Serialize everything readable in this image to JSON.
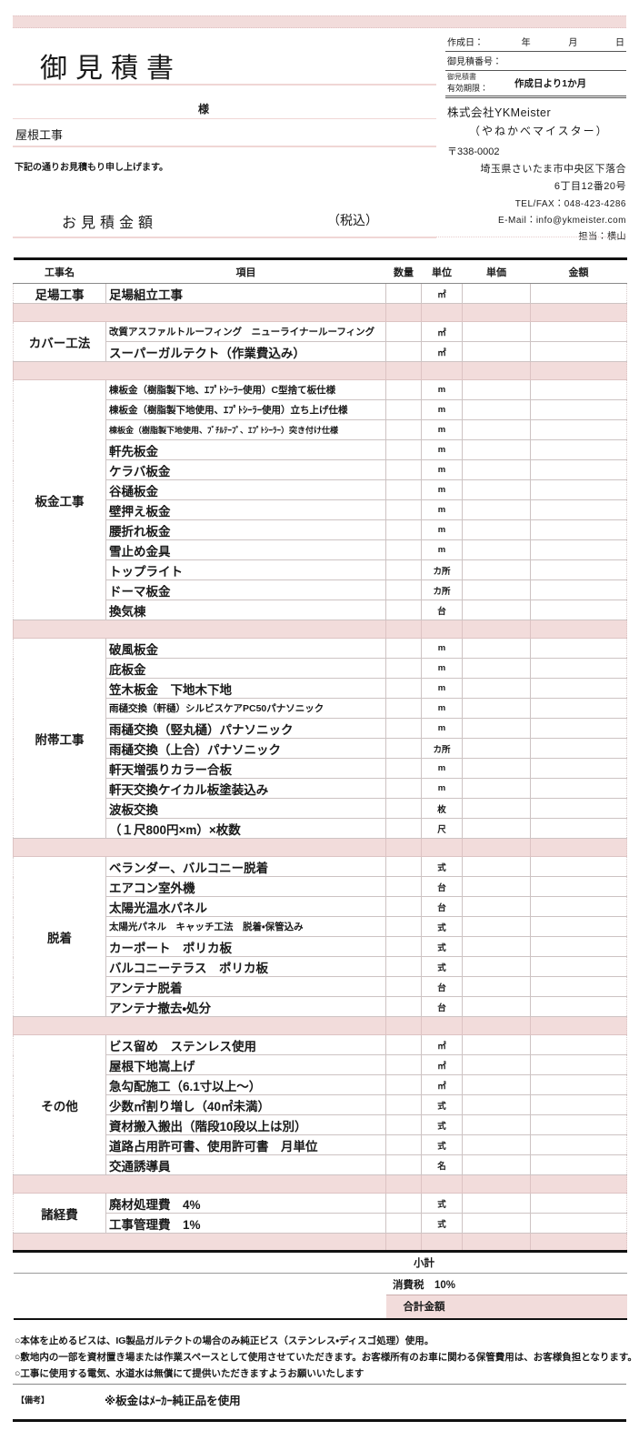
{
  "colors": {
    "accent_pink": "#f2dcdb",
    "line_dark": "#111111"
  },
  "page": {
    "title": "御見積書",
    "customer_suffix": "様",
    "subject": "屋根工事",
    "greeting": "下記の通りお見積もり申し上げます。",
    "amount_label": "お見積金額",
    "amount_tax_label": "（税込）"
  },
  "meta": {
    "created_label": "作成日：",
    "created_year": "年",
    "created_month": "月",
    "created_day": "日",
    "quote_no_label": "御見積番号：",
    "validity_label_line1": "御見積書",
    "validity_label_line2": "有効期限：",
    "validity_value": "作成日より1か月"
  },
  "company": {
    "name": "株式会社YKMeister",
    "kana": "（やねかべマイスター）",
    "postal": "〒338-0002",
    "address1": "埼玉県さいたま市中央区下落合",
    "address2": "6丁目12番20号",
    "telfax": "TEL/FAX：048-423-4286",
    "email": "E-Mail：info@ykmeister.com",
    "contact": "担当：横山"
  },
  "table": {
    "headers": [
      "工事名",
      "項目",
      "数量",
      "単位",
      "単価",
      "金額"
    ],
    "sections": [
      {
        "name": "足場工事",
        "rows": [
          {
            "item": "足場組立工事",
            "unit": "㎡"
          }
        ]
      },
      {
        "name": "カバー工法",
        "rows": [
          {
            "item": "改質アスファルトルーフィング　ニューライナールーフィング",
            "unit": "㎡",
            "size": "s"
          },
          {
            "item": "スーパーガルテクト（作業費込み）",
            "unit": "㎡"
          }
        ]
      },
      {
        "name": "板金工事",
        "rows": [
          {
            "item": "棟板金（樹脂製下地、ｴﾌﾟﾄｼｰﾗｰ使用）C型捨て板仕様",
            "unit": "m",
            "size": "s"
          },
          {
            "item": "棟板金（樹脂製下地使用、ｴﾌﾟﾄｼｰﾗｰ使用）立ち上げ仕様",
            "unit": "m",
            "size": "s"
          },
          {
            "item": "棟板金（樹脂製下地使用、ﾌﾞﾁﾙﾃｰﾌﾟ、ｴﾌﾟﾄｼｰﾗｰ）突き付け仕様",
            "unit": "m",
            "size": "xs"
          },
          {
            "item": "軒先板金",
            "unit": "m"
          },
          {
            "item": "ケラバ板金",
            "unit": "m"
          },
          {
            "item": "谷樋板金",
            "unit": "m"
          },
          {
            "item": "壁押え板金",
            "unit": "m"
          },
          {
            "item": "腰折れ板金",
            "unit": "m"
          },
          {
            "item": "雪止め金具",
            "unit": "m"
          },
          {
            "item": "トップライト",
            "unit": "カ所"
          },
          {
            "item": "ドーマ板金",
            "unit": "カ所"
          },
          {
            "item": "換気棟",
            "unit": "台"
          }
        ]
      },
      {
        "name": "附帯工事",
        "rows": [
          {
            "item": "破風板金",
            "unit": "m"
          },
          {
            "item": "庇板金",
            "unit": "m"
          },
          {
            "item": "笠木板金　下地木下地",
            "unit": "m"
          },
          {
            "item": "雨樋交換（軒樋）シルビスケアPC50パナソニック",
            "unit": "m",
            "size": "s"
          },
          {
            "item": "雨樋交換（竪丸樋）パナソニック",
            "unit": "m"
          },
          {
            "item": "雨樋交換（上合）パナソニック",
            "unit": "カ所"
          },
          {
            "item": "軒天増張りカラー合板",
            "unit": "m"
          },
          {
            "item": "軒天交換ケイカル板塗装込み",
            "unit": "m"
          },
          {
            "item": "波板交換",
            "unit": "枚"
          },
          {
            "item": "（１尺800円×m）×枚数",
            "unit": "尺"
          }
        ]
      },
      {
        "name": "脱着",
        "rows": [
          {
            "item": "ベランダー、バルコニー脱着",
            "unit": "式"
          },
          {
            "item": "エアコン室外機",
            "unit": "台"
          },
          {
            "item": "太陽光温水パネル",
            "unit": "台"
          },
          {
            "item": "太陽光パネル　キャッチ工法　脱着・保管込み",
            "unit": "式",
            "size": "s"
          },
          {
            "item": "カーポート　ポリカ板",
            "unit": "式"
          },
          {
            "item": "バルコニーテラス　ポリカ板",
            "unit": "式"
          },
          {
            "item": "アンテナ脱着",
            "unit": "台"
          },
          {
            "item": "アンテナ撤去・処分",
            "unit": "台"
          }
        ]
      },
      {
        "name": "その他",
        "rows": [
          {
            "item": "ビス留め　ステンレス使用",
            "unit": "㎡"
          },
          {
            "item": "屋根下地嵩上げ",
            "unit": "㎡"
          },
          {
            "item": "急勾配施工（6.1寸以上～）",
            "unit": "㎡"
          },
          {
            "item": "少数㎡割り増し（40㎡未満）",
            "unit": "式"
          },
          {
            "item": "資材搬入搬出（階段10段以上は別）",
            "unit": "式"
          },
          {
            "item": "道路占用許可書、使用許可書　月単位",
            "unit": "式"
          },
          {
            "item": "交通誘導員",
            "unit": "名"
          }
        ]
      },
      {
        "name": "諸経費",
        "rows": [
          {
            "item": "廃材処理費　4%",
            "unit": "式"
          },
          {
            "item": "工事管理費　1%",
            "unit": "式"
          }
        ]
      }
    ]
  },
  "summary": {
    "subtotal_label": "小計",
    "tax_label": "消費税　10%",
    "total_label": "合計金額"
  },
  "notes": [
    "○本体を止めるビスは、IG製品ガルテクトの場合のみ純正ビス（ステンレス・ディスゴ処理）使用。",
    "○敷地内の一部を資材置き場または作業スペースとして使用させていただきます。お客様所有のお車に関わる保管費用は、お客様負担となります。",
    "○工事に使用する電気、水道水は無償にて提供いただきますようお願いいたします"
  ],
  "remarks": {
    "label": "【備考】",
    "text": "※板金はﾒｰｶｰ純正品を使用"
  }
}
